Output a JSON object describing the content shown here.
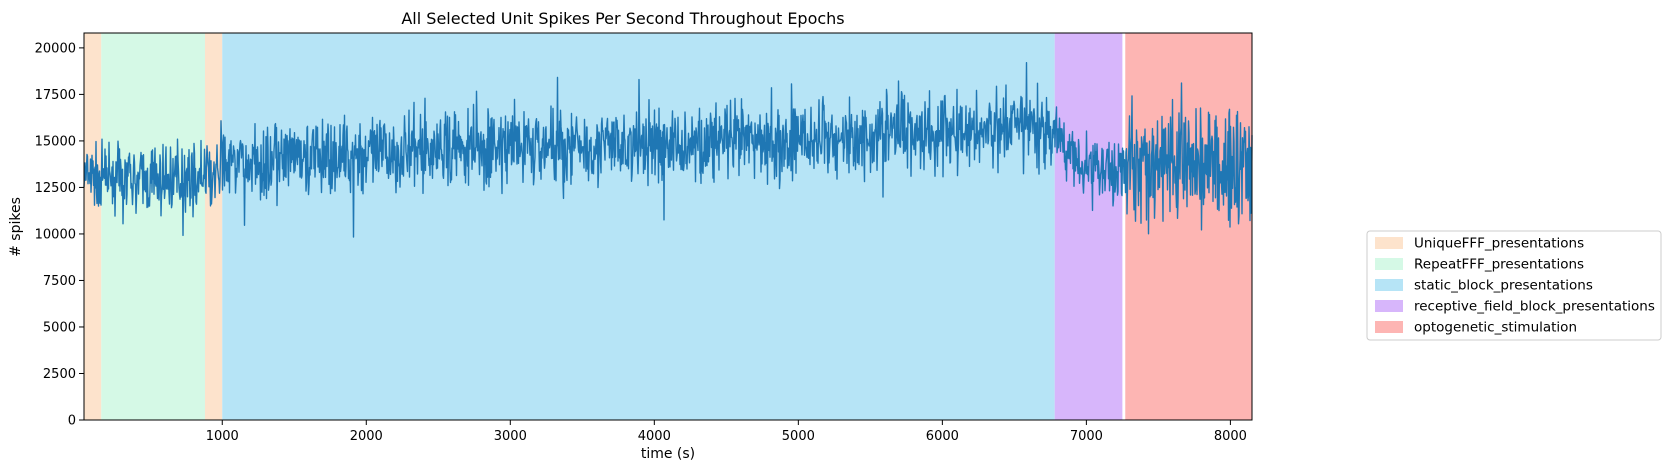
{
  "chart_data": {
    "type": "line",
    "title": "All Selected Unit Spikes Per Second Throughout Epochs",
    "xlabel": "time (s)",
    "ylabel": "# spikes",
    "xlim": [
      40,
      8150
    ],
    "ylim": [
      0,
      20800
    ],
    "x_ticks": [
      1000,
      2000,
      3000,
      4000,
      5000,
      6000,
      7000,
      8000
    ],
    "y_ticks": [
      0,
      2500,
      5000,
      7500,
      10000,
      12500,
      15000,
      17500,
      20000
    ],
    "grid": false,
    "legend_position": "outside-right",
    "line_color": "#1f77b4",
    "epochs": [
      {
        "name": "UniqueFFF_presentations",
        "start": 40,
        "end": 160,
        "color": "#fde3cc"
      },
      {
        "name": "RepeatFFF_presentations",
        "start": 160,
        "end": 880,
        "color": "#d5f9e6"
      },
      {
        "name": "UniqueFFF_presentations",
        "start": 880,
        "end": 1000,
        "color": "#fde3cc"
      },
      {
        "name": "static_block_presentations",
        "start": 1000,
        "end": 6780,
        "color": "#b6e4f6"
      },
      {
        "name": "receptive_field_block_presentations",
        "start": 6780,
        "end": 7250,
        "color": "#d7b6fb"
      },
      {
        "name": "optogenetic_stimulation",
        "start": 7270,
        "end": 8150,
        "color": "#fdb5b3"
      }
    ],
    "legend": [
      {
        "label": "UniqueFFF_presentations",
        "color": "#fde3cc"
      },
      {
        "label": "RepeatFFF_presentations",
        "color": "#d5f9e6"
      },
      {
        "label": "static_block_presentations",
        "color": "#b6e4f6"
      },
      {
        "label": "receptive_field_block_presentations",
        "color": "#d7b6fb"
      },
      {
        "label": "optogenetic_stimulation",
        "color": "#fdb5b3"
      }
    ],
    "series": [
      {
        "x": [
          40,
          200,
          400,
          600,
          800,
          950,
          1000,
          1200,
          1500,
          1800,
          2000,
          2500,
          3000,
          3500,
          4000,
          4500,
          5000,
          5500,
          5700,
          6000,
          6500,
          6760,
          6800,
          7000,
          7200,
          7250,
          7300,
          7500,
          7700,
          7900,
          8100,
          8150
        ],
        "y": [
          13000,
          13000,
          12800,
          12900,
          13100,
          13000,
          13800,
          13700,
          14000,
          14100,
          14200,
          14500,
          14700,
          14800,
          14700,
          15000,
          14900,
          15300,
          15800,
          15400,
          15700,
          15500,
          15200,
          13600,
          13500,
          13600,
          13800,
          13600,
          13900,
          13500,
          13700,
          13600
        ],
        "spread": [
          1300,
          1300,
          1300,
          1300,
          1300,
          1300,
          1500,
          1500,
          1500,
          1500,
          1500,
          1500,
          1500,
          1500,
          1500,
          1500,
          1500,
          1500,
          1700,
          1500,
          1500,
          1500,
          1400,
          1300,
          1300,
          1300,
          2500,
          2500,
          2500,
          2500,
          2500,
          2500
        ]
      }
    ]
  }
}
